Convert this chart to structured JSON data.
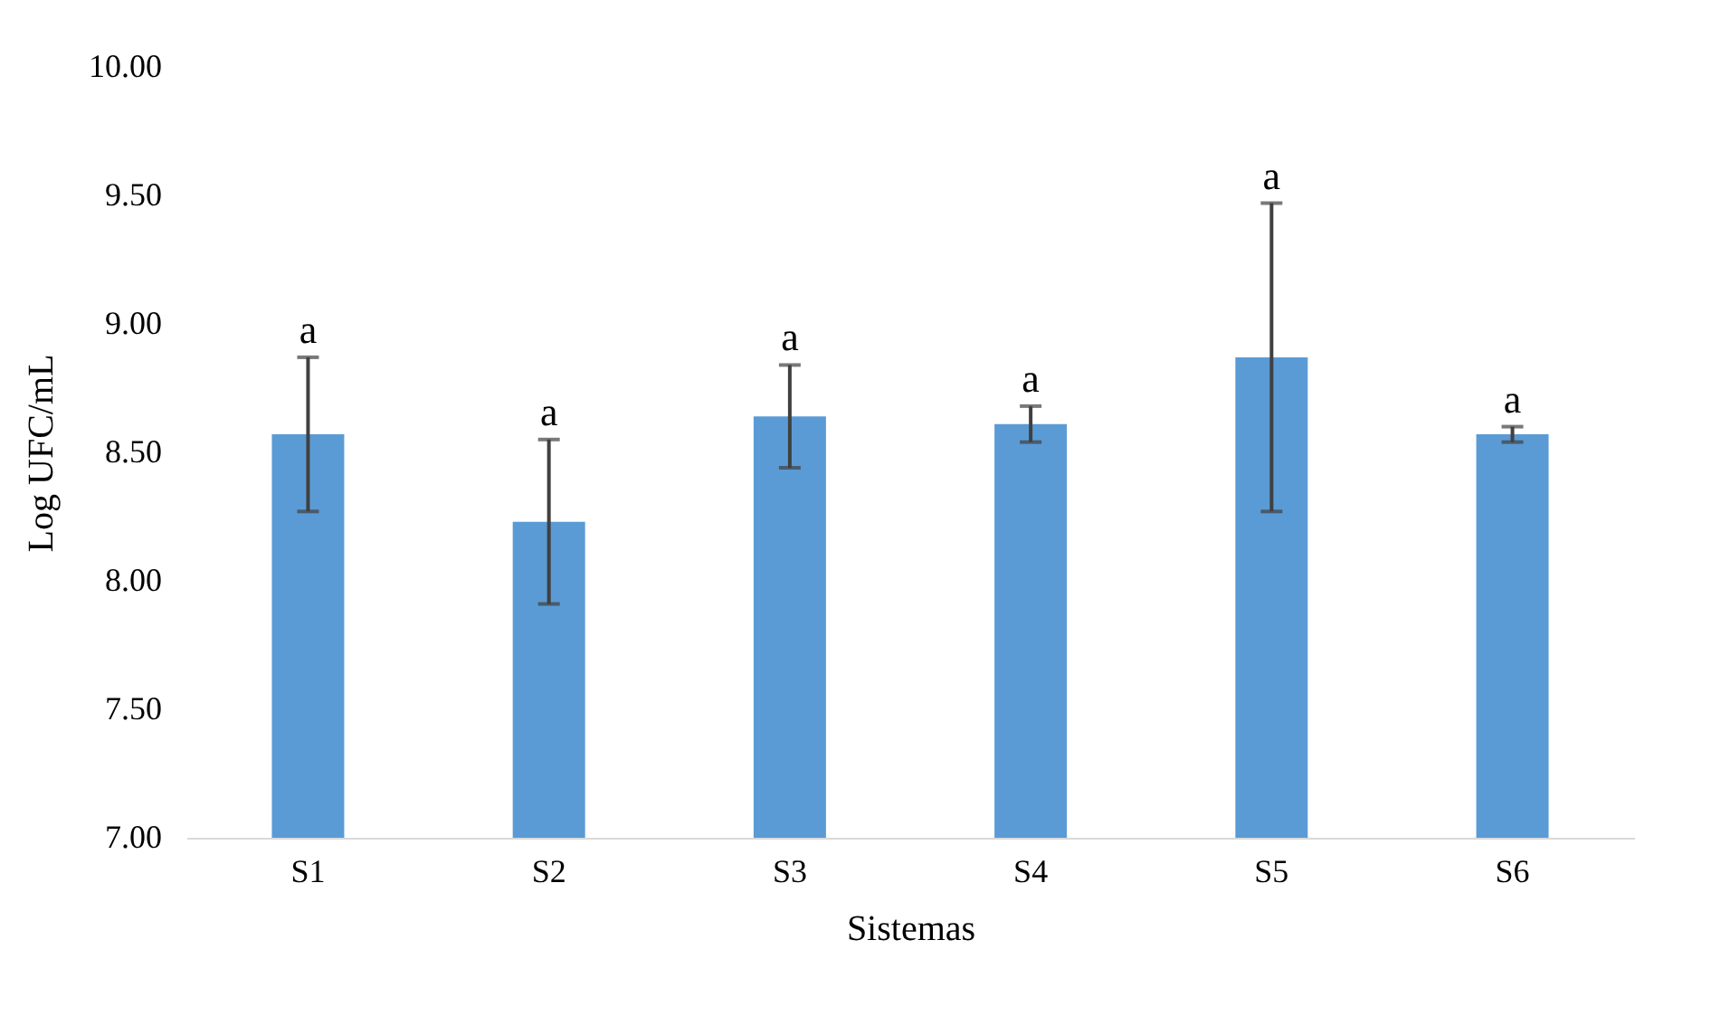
{
  "chart_data": {
    "type": "bar",
    "xlabel": "Sistemas",
    "ylabel": "Log UFC/mL",
    "categories": [
      "S1",
      "S2",
      "S3",
      "S4",
      "S5",
      "S6"
    ],
    "values": [
      8.57,
      8.23,
      8.64,
      8.61,
      8.87,
      8.57
    ],
    "errors": [
      0.3,
      0.32,
      0.2,
      0.07,
      0.6,
      0.03
    ],
    "color": "#5b9bd5",
    "ylim": [
      7,
      10
    ],
    "yticks": [
      {
        "value": 7,
        "label": "7.00"
      },
      {
        "value": 7.5,
        "label": "7.50"
      },
      {
        "value": 8,
        "label": "8.00"
      },
      {
        "value": 8.5,
        "label": "8.50"
      },
      {
        "value": 9,
        "label": "9.00"
      },
      {
        "value": 9.5,
        "label": "9.50"
      },
      {
        "value": 10,
        "label": "10.00"
      }
    ],
    "annotations": [
      {
        "text": "a",
        "x": "S1",
        "y": 8.87
      },
      {
        "text": "a",
        "x": "S2",
        "y": 8.55
      },
      {
        "text": "a",
        "x": "S3",
        "y": 8.84
      },
      {
        "text": "a",
        "x": "S4",
        "y": 8.68
      },
      {
        "text": "a",
        "x": "S5",
        "y": 9.47
      },
      {
        "text": "a",
        "x": "S6",
        "y": 8.6
      }
    ],
    "grid": false
  }
}
